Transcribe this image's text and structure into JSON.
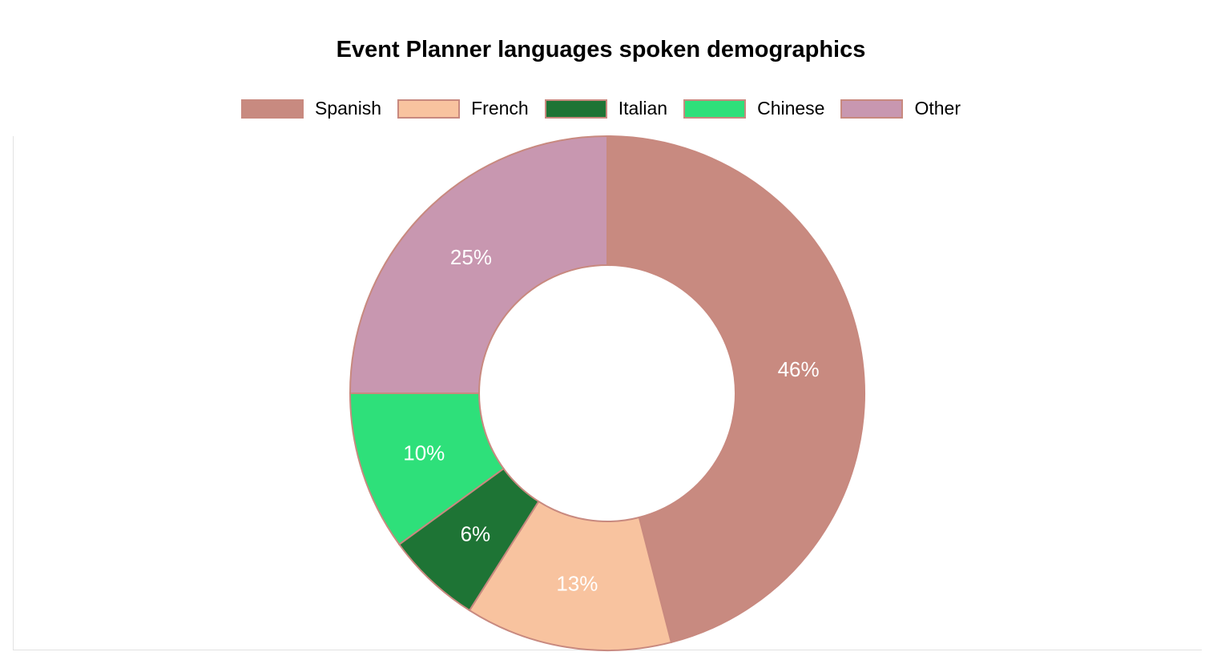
{
  "chart_data": {
    "type": "pie",
    "title": "Event Planner languages spoken demographics",
    "legend_position": "top",
    "categories": [
      "Spanish",
      "French",
      "Italian",
      "Chinese",
      "Other"
    ],
    "values": [
      46,
      13,
      6,
      10,
      25
    ],
    "labels": [
      "46%",
      "13%",
      "6%",
      "10%",
      "25%"
    ],
    "colors": [
      "#c88a80",
      "#f8c39f",
      "#1e7435",
      "#2ee07a",
      "#c897b0"
    ],
    "border_color": "#c8897f",
    "donut": true
  }
}
